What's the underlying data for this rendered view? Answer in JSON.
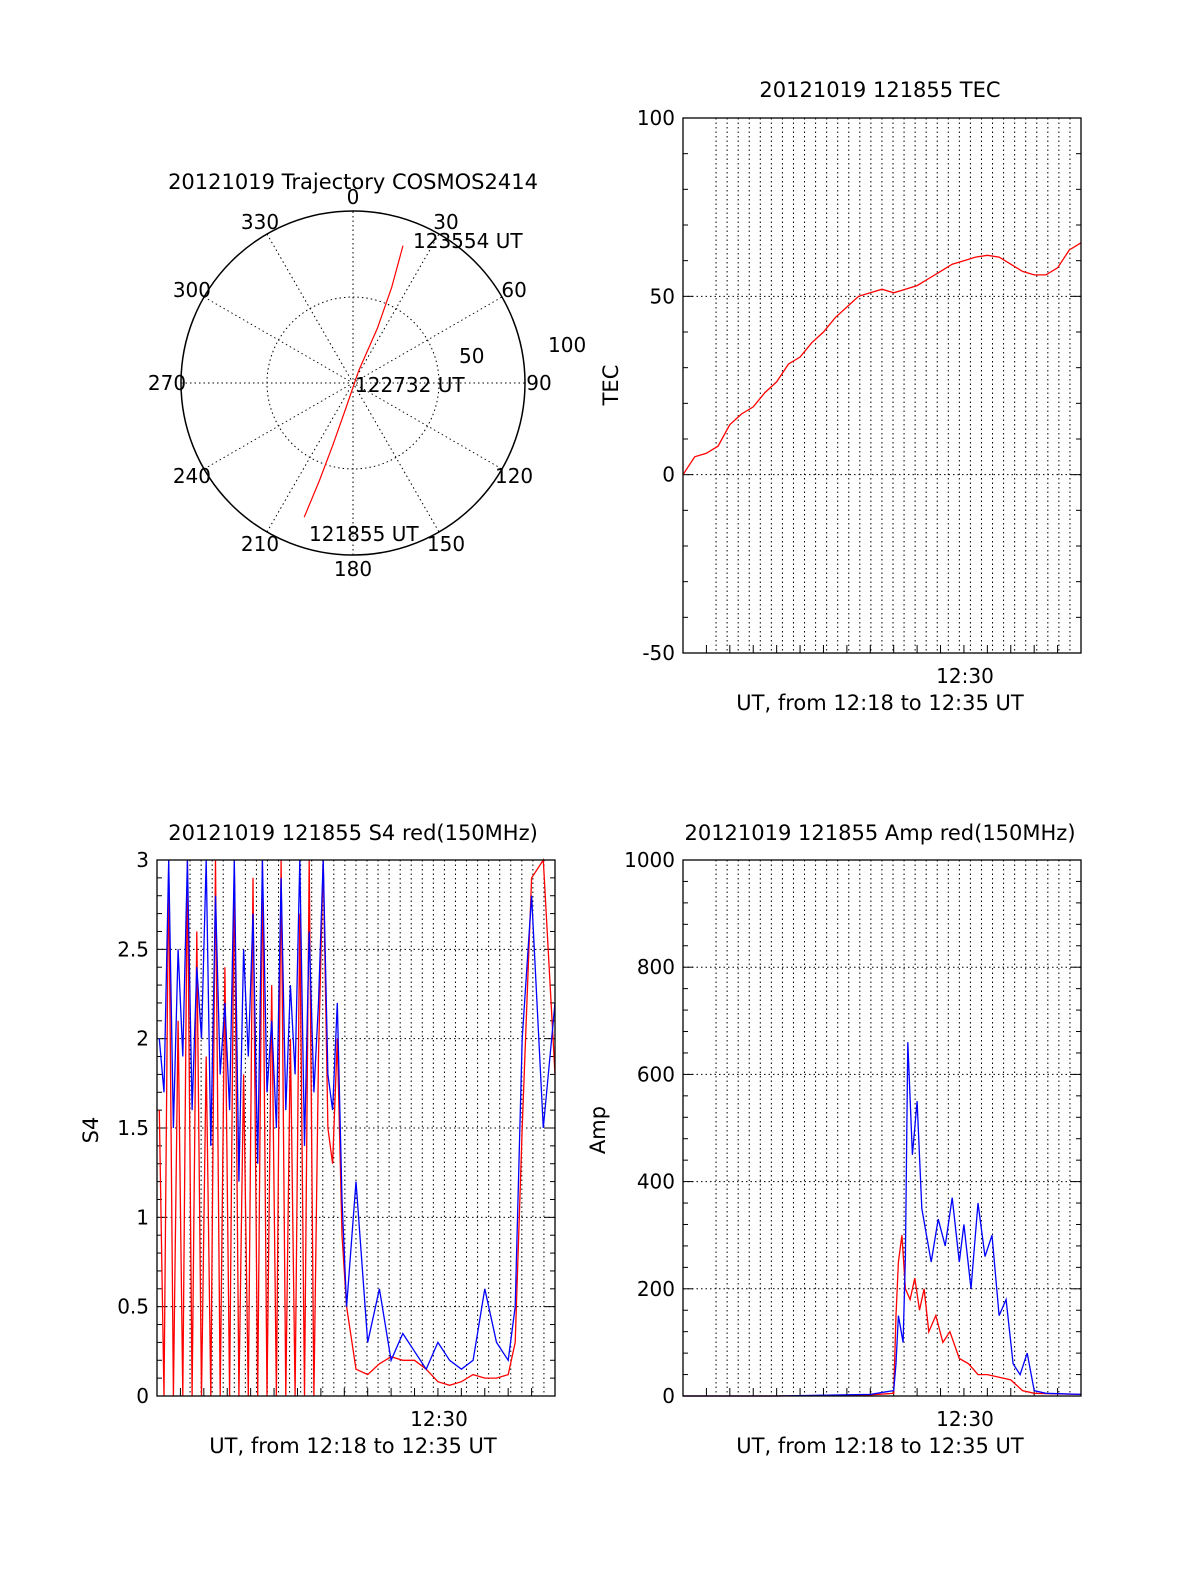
{
  "chart_data": [
    {
      "type": "polar",
      "title": "20121019 Trajectory COSMOS2414",
      "angle_labels": [
        "0",
        "30",
        "60",
        "90",
        "120",
        "150",
        "180",
        "210",
        "240",
        "270",
        "300",
        "330"
      ],
      "radius_labels": [
        "50",
        "100"
      ],
      "series": [
        {
          "color": "#ff0000",
          "points": [
            {
              "azimuth": 200,
              "radius": 83
            },
            {
              "azimuth": 199,
              "radius": 60
            },
            {
              "azimuth": 198,
              "radius": 38
            },
            {
              "azimuth": 196,
              "radius": 16
            },
            {
              "azimuth": 25,
              "radius": 8
            },
            {
              "azimuth": 24,
              "radius": 35
            },
            {
              "azimuth": 22,
              "radius": 60
            },
            {
              "azimuth": 20,
              "radius": 85
            }
          ]
        }
      ],
      "annotations": [
        "123554 UT",
        "122732 UT",
        "121855 UT"
      ]
    },
    {
      "type": "line",
      "title": "20121019 121855 TEC",
      "xlabel": "UT, from 12:18 to 12:35 UT",
      "ylabel": "TEC",
      "xtick_label": "12:30",
      "xlim": [
        0,
        17
      ],
      "ylim": [
        -50,
        100
      ],
      "ytick_labels": [
        "-50",
        "0",
        "50",
        "100"
      ],
      "grid": true,
      "series": [
        {
          "color": "#ff0000",
          "x": [
            0,
            0.5,
            1.0,
            1.5,
            2.0,
            2.5,
            3.0,
            3.5,
            4.0,
            4.5,
            5.0,
            5.5,
            6.0,
            6.5,
            7.0,
            7.5,
            8.0,
            8.5,
            9.0,
            9.5,
            10.0,
            10.5,
            11.0,
            11.5,
            12.0,
            12.5,
            13.0,
            13.5,
            14.0,
            14.5,
            15.0,
            15.5,
            16.0,
            16.5,
            17.0
          ],
          "y": [
            0,
            5,
            6,
            8,
            14,
            17,
            19,
            23,
            26,
            31,
            33,
            37,
            40,
            44,
            47,
            50,
            51,
            52,
            51,
            52,
            53,
            55,
            57,
            59,
            60,
            61,
            61.5,
            61,
            59,
            57,
            56,
            56,
            58,
            63,
            65
          ]
        }
      ]
    },
    {
      "type": "line",
      "title": "20121019 121855 S4 red(150MHz)",
      "xlabel": "UT, from 12:18 to 12:35 UT",
      "ylabel": "S4",
      "xtick_label": "12:30",
      "xlim": [
        0,
        17
      ],
      "ylim": [
        0,
        3
      ],
      "ytick_labels": [
        "0",
        "0.5",
        "1",
        "1.5",
        "2",
        "2.5",
        "3"
      ],
      "grid": true,
      "series": [
        {
          "color": "#ff0000",
          "x": [
            0.1,
            0.3,
            0.5,
            0.7,
            0.9,
            1.1,
            1.3,
            1.5,
            1.7,
            1.9,
            2.1,
            2.3,
            2.5,
            2.7,
            2.9,
            3.1,
            3.3,
            3.5,
            3.7,
            3.9,
            4.1,
            4.3,
            4.5,
            4.7,
            4.9,
            5.1,
            5.3,
            5.5,
            5.7,
            5.9,
            6.1,
            6.3,
            6.5,
            6.7,
            6.9,
            7.1,
            7.3,
            7.5,
            7.7,
            7.9,
            8.1,
            8.5,
            9.0,
            9.5,
            10.0,
            10.5,
            11.0,
            11.5,
            12.0,
            12.5,
            13.0,
            13.5,
            14.0,
            14.5,
            15.0,
            15.3,
            15.6,
            16.0,
            16.5,
            17.0
          ],
          "y": [
            1.6,
            0.0,
            3.0,
            0.0,
            2.1,
            0.0,
            3.0,
            0.0,
            2.6,
            0.0,
            1.9,
            0.0,
            3.0,
            0.0,
            2.4,
            0.0,
            3.0,
            0.0,
            1.8,
            0.0,
            2.9,
            0.0,
            3.0,
            0.0,
            2.3,
            0.0,
            3.0,
            0.0,
            2.0,
            0.0,
            2.7,
            0.0,
            3.0,
            0.0,
            1.9,
            3.0,
            1.5,
            1.3,
            2.0,
            0.9,
            0.5,
            0.15,
            0.12,
            0.18,
            0.22,
            0.2,
            0.2,
            0.15,
            0.08,
            0.06,
            0.08,
            0.12,
            0.1,
            0.1,
            0.12,
            0.3,
            1.5,
            2.9,
            3.0,
            1.8
          ]
        },
        {
          "color": "#0000ff",
          "x": [
            0.1,
            0.3,
            0.5,
            0.7,
            0.9,
            1.1,
            1.3,
            1.5,
            1.7,
            1.9,
            2.1,
            2.3,
            2.5,
            2.7,
            2.9,
            3.1,
            3.3,
            3.5,
            3.7,
            3.9,
            4.1,
            4.3,
            4.5,
            4.7,
            4.9,
            5.1,
            5.3,
            5.5,
            5.7,
            5.9,
            6.1,
            6.3,
            6.5,
            6.7,
            6.9,
            7.1,
            7.3,
            7.5,
            7.7,
            7.9,
            8.1,
            8.5,
            9.0,
            9.5,
            10.0,
            10.5,
            11.0,
            11.5,
            12.0,
            12.5,
            13.0,
            13.5,
            14.0,
            14.5,
            15.0,
            15.3,
            15.6,
            16.0,
            16.5,
            17.0
          ],
          "y": [
            2.0,
            1.7,
            3.0,
            1.5,
            2.5,
            1.9,
            3.0,
            1.6,
            2.4,
            2.0,
            3.0,
            1.4,
            2.8,
            1.8,
            2.2,
            1.6,
            3.0,
            1.2,
            2.5,
            1.9,
            2.7,
            1.3,
            3.0,
            1.7,
            2.1,
            1.5,
            2.9,
            1.6,
            2.3,
            1.8,
            3.0,
            1.4,
            2.6,
            1.7,
            2.2,
            3.0,
            1.8,
            1.6,
            2.2,
            1.1,
            0.5,
            1.2,
            0.3,
            0.6,
            0.2,
            0.35,
            0.25,
            0.15,
            0.3,
            0.2,
            0.15,
            0.2,
            0.6,
            0.3,
            0.2,
            0.5,
            2.0,
            2.8,
            1.5,
            2.2
          ]
        }
      ]
    },
    {
      "type": "line",
      "title": "20121019 121855 Amp red(150MHz)",
      "xlabel": "UT, from 12:18 to 12:35 UT",
      "ylabel": "Amp",
      "xtick_label": "12:30",
      "xlim": [
        0,
        17
      ],
      "ylim": [
        0,
        1000
      ],
      "ytick_labels": [
        "0",
        "200",
        "400",
        "600",
        "800",
        "1000"
      ],
      "grid": true,
      "series": [
        {
          "color": "#ff0000",
          "x": [
            0,
            4,
            8,
            9.0,
            9.1,
            9.2,
            9.35,
            9.5,
            9.7,
            9.9,
            10.1,
            10.3,
            10.5,
            10.8,
            11.1,
            11.4,
            11.8,
            12.2,
            12.6,
            13.0,
            13.5,
            14.0,
            14.5,
            15.0,
            17.0
          ],
          "y": [
            0,
            0,
            2,
            5,
            150,
            250,
            300,
            200,
            180,
            220,
            160,
            200,
            120,
            150,
            100,
            120,
            70,
            60,
            40,
            40,
            35,
            30,
            10,
            5,
            3
          ]
        },
        {
          "color": "#0000ff",
          "x": [
            0,
            4,
            8,
            9.0,
            9.1,
            9.2,
            9.4,
            9.5,
            9.6,
            9.8,
            10.0,
            10.2,
            10.4,
            10.6,
            10.9,
            11.2,
            11.5,
            11.8,
            12.0,
            12.3,
            12.6,
            12.9,
            13.2,
            13.5,
            13.8,
            14.1,
            14.4,
            14.7,
            15.0,
            15.5,
            17.0
          ],
          "y": [
            0,
            0,
            3,
            10,
            60,
            150,
            100,
            260,
            660,
            450,
            550,
            350,
            300,
            250,
            330,
            280,
            370,
            250,
            320,
            200,
            360,
            260,
            300,
            150,
            180,
            60,
            40,
            80,
            10,
            5,
            3
          ]
        }
      ]
    }
  ]
}
